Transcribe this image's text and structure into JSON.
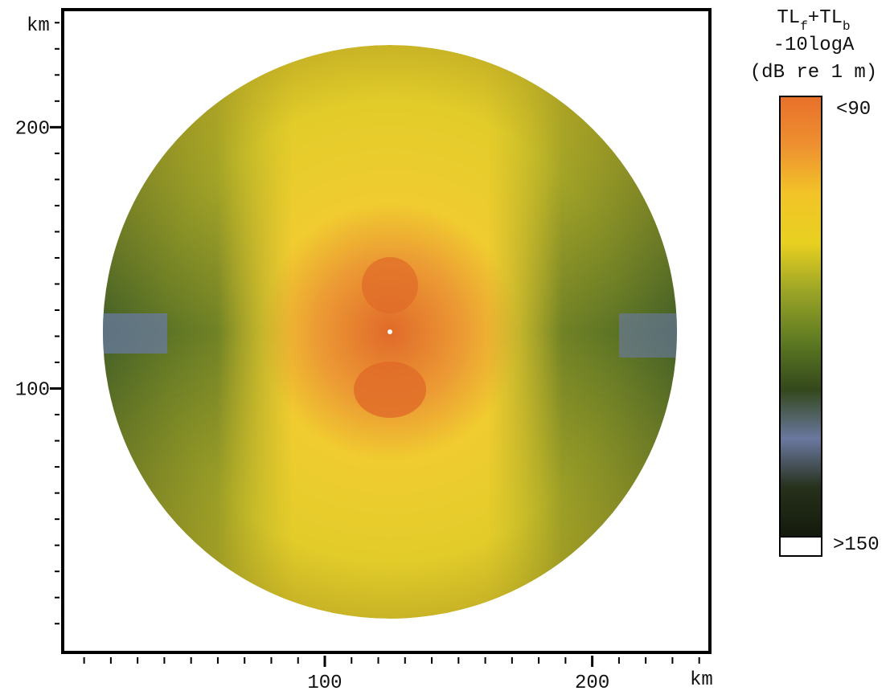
{
  "chart_data": {
    "type": "raster",
    "x_unit": "km",
    "y_unit": "km",
    "xlim": [
      2,
      244
    ],
    "ylim": [
      -1,
      245
    ],
    "xticks": [
      100,
      200
    ],
    "yticks": [
      100,
      200
    ],
    "xminorticks": [
      10,
      20,
      30,
      40,
      50,
      60,
      70,
      80,
      90,
      110,
      120,
      130,
      140,
      150,
      160,
      170,
      180,
      190,
      210,
      220,
      230,
      240
    ],
    "yminorticks": [
      10,
      20,
      30,
      40,
      50,
      60,
      70,
      80,
      90,
      110,
      120,
      130,
      140,
      150,
      160,
      170,
      180,
      190,
      210,
      220,
      230,
      240
    ],
    "colorbar": {
      "title": [
        [
          {
            "text": "TL"
          },
          {
            "text": "f",
            "sub": true
          },
          {
            "text": "+TL"
          },
          {
            "text": "b",
            "sub": true
          }
        ],
        [
          {
            "text": "-10logA"
          }
        ],
        [
          {
            "text": "(dB re 1 m)"
          }
        ]
      ],
      "top_label": "<90",
      "bottom_label": ">150",
      "colors": [
        "#e8702a",
        "#ee9030",
        "#f2c428",
        "#e8d020",
        "#9aa426",
        "#5e7a22",
        "#34481c",
        "#6a78a0",
        "#26301a",
        "#141a0c"
      ],
      "end_color": "#ffffff"
    }
  }
}
